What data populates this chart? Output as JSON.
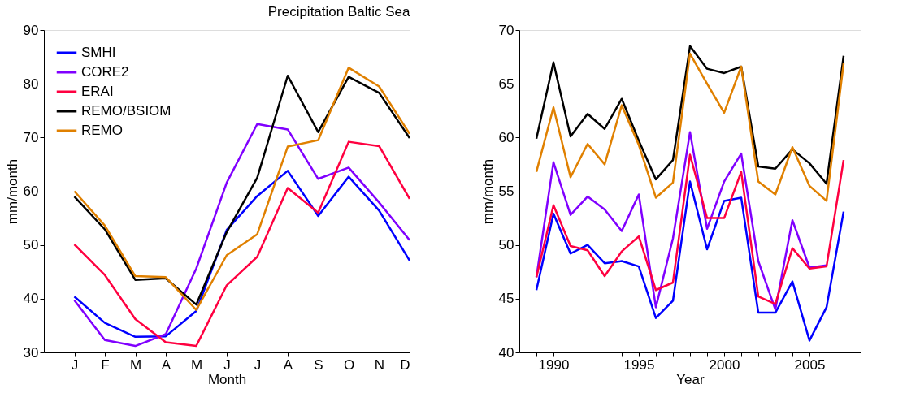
{
  "chart_data": [
    {
      "type": "line",
      "title": "Precipitation Baltic Sea",
      "xlabel": "Month",
      "ylabel": "mm/month",
      "categories": [
        "J",
        "F",
        "M",
        "A",
        "M",
        "J",
        "J",
        "A",
        "S",
        "O",
        "N",
        "D"
      ],
      "ylim": [
        30,
        90
      ],
      "yticks": [
        30,
        40,
        50,
        60,
        70,
        80,
        90
      ],
      "grid": false,
      "legend": "top left",
      "marker": "none",
      "line_style": "solid",
      "series": [
        {
          "name": "SMHI",
          "color": "#0000ff",
          "values": [
            40.4,
            35.5,
            32.9,
            33.0,
            37.7,
            52.8,
            59.1,
            63.8,
            55.4,
            62.7,
            56.4,
            47.1
          ]
        },
        {
          "name": "CORE2",
          "color": "#8000ff",
          "values": [
            39.7,
            32.3,
            31.2,
            33.4,
            45.6,
            61.6,
            72.5,
            71.5,
            62.3,
            64.4,
            57.9,
            50.9
          ]
        },
        {
          "name": "ERAI",
          "color": "#ff0040",
          "values": [
            50.1,
            44.4,
            36.2,
            31.9,
            31.2,
            42.5,
            47.8,
            60.6,
            56.0,
            69.2,
            68.4,
            58.6
          ]
        },
        {
          "name": "REMO/BSIOM",
          "color": "#000000",
          "values": [
            59.0,
            52.9,
            43.5,
            43.8,
            38.9,
            52.4,
            62.5,
            81.5,
            71.0,
            81.3,
            78.3,
            69.9
          ]
        },
        {
          "name": "REMO",
          "color": "#e08000",
          "values": [
            60.0,
            53.6,
            44.2,
            44.0,
            37.9,
            48.1,
            52.0,
            68.3,
            69.5,
            83.0,
            79.5,
            70.7
          ]
        }
      ]
    },
    {
      "type": "line",
      "xlabel": "Year",
      "ylabel": "mm/month",
      "x": [
        1989,
        1990,
        1991,
        1992,
        1993,
        1994,
        1995,
        1996,
        1997,
        1998,
        1999,
        2000,
        2001,
        2002,
        2003,
        2004,
        2005,
        2006,
        2007
      ],
      "xlim": [
        1988,
        2008
      ],
      "xticks": [
        {
          "value": 1989,
          "label": null
        },
        1990,
        {
          "value": 1991,
          "label": null
        },
        {
          "value": 1992,
          "label": null
        },
        {
          "value": 1993,
          "label": null
        },
        {
          "value": 1994,
          "label": null
        },
        1995,
        {
          "value": 1996,
          "label": null
        },
        {
          "value": 1997,
          "label": null
        },
        {
          "value": 1998,
          "label": null
        },
        {
          "value": 1999,
          "label": null
        },
        2000,
        {
          "value": 2001,
          "label": null
        },
        {
          "value": 2002,
          "label": null
        },
        {
          "value": 2003,
          "label": null
        },
        {
          "value": 2004,
          "label": null
        },
        2005,
        {
          "value": 2006,
          "label": null
        },
        {
          "value": 2007,
          "label": null
        }
      ],
      "ylim": [
        40,
        70
      ],
      "yticks": [
        40,
        45,
        50,
        55,
        60,
        65,
        70
      ],
      "grid": false,
      "legend": false,
      "marker": "none",
      "line_style": "solid",
      "series": [
        {
          "color": "#0000ff",
          "values": [
            45.8,
            52.9,
            49.2,
            50.0,
            48.3,
            48.5,
            48.0,
            43.2,
            44.8,
            55.9,
            49.6,
            54.1,
            54.4,
            43.7,
            43.7,
            46.6,
            41.1,
            44.2,
            53.1
          ]
        },
        {
          "color": "#8000ff",
          "values": [
            47.0,
            57.7,
            52.8,
            54.5,
            53.3,
            51.3,
            54.7,
            44.2,
            50.6,
            60.5,
            51.5,
            55.9,
            58.5,
            48.5,
            44.0,
            52.3,
            47.9,
            48.1,
            null
          ]
        },
        {
          "color": "#ff0040",
          "values": [
            47.0,
            53.7,
            49.9,
            49.5,
            47.1,
            49.4,
            50.8,
            45.8,
            46.5,
            58.4,
            52.5,
            52.5,
            56.8,
            45.2,
            44.5,
            49.7,
            47.8,
            48.0,
            57.9
          ]
        },
        {
          "color": "#000000",
          "values": [
            59.9,
            67.0,
            60.1,
            62.2,
            60.8,
            63.6,
            59.7,
            56.1,
            57.9,
            68.5,
            66.4,
            66.0,
            66.6,
            57.3,
            57.1,
            58.9,
            57.6,
            55.7,
            67.6
          ]
        },
        {
          "color": "#e08000",
          "values": [
            56.8,
            62.8,
            56.3,
            59.4,
            57.5,
            63.0,
            59.3,
            54.4,
            55.8,
            67.8,
            65.0,
            62.3,
            66.6,
            55.9,
            54.7,
            59.1,
            55.5,
            54.1,
            66.9
          ]
        }
      ]
    }
  ]
}
